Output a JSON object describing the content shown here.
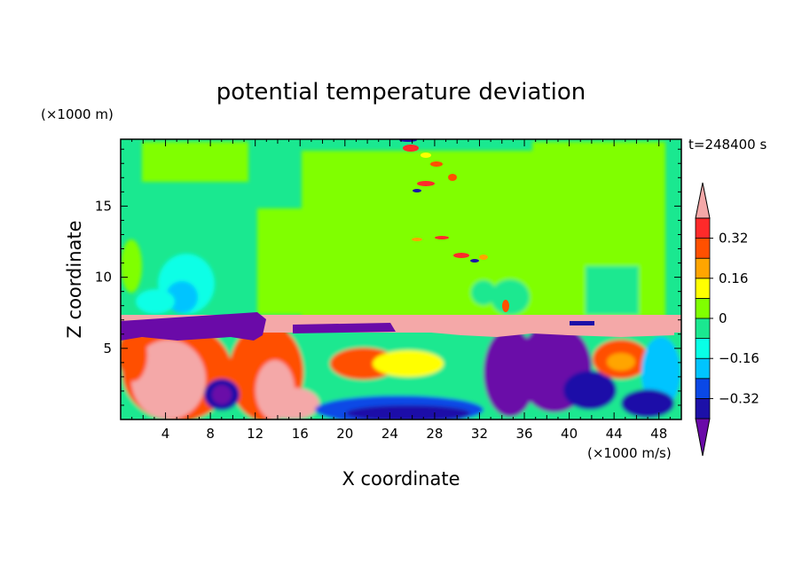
{
  "chart_data": {
    "type": "heatmap",
    "title": "potential temperature deviation",
    "xlabel": "X coordinate",
    "ylabel": "Z coordinate",
    "x_unit": "(×1000 m/s)",
    "y_unit": "(×1000 m)",
    "time_label": "t=248400 s",
    "xlim": [
      0,
      50
    ],
    "ylim": [
      0,
      19.7
    ],
    "x_ticks": [
      "4",
      "8",
      "12",
      "16",
      "20",
      "24",
      "28",
      "32",
      "36",
      "40",
      "44",
      "48"
    ],
    "y_ticks": [
      "5",
      "10",
      "15"
    ],
    "colorbar": {
      "levels": [
        -0.4,
        -0.32,
        -0.24,
        -0.16,
        -0.08,
        0,
        0.08,
        0.16,
        0.24,
        0.32,
        0.4
      ],
      "labels": [
        "0.32",
        "0.16",
        "0",
        "−0.16",
        "−0.32"
      ],
      "colors": [
        "#6a0aa8",
        "#1c10a8",
        "#0a48e6",
        "#00c4ff",
        "#08ffe6",
        "#1ae890",
        "#80ff00",
        "#ffff00",
        "#ffa500",
        "#ff5000",
        "#ff2a2a",
        "#f4a8a8"
      ]
    }
  }
}
